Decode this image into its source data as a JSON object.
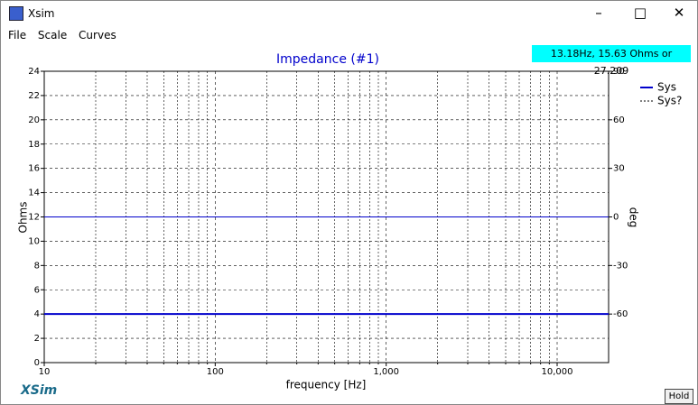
{
  "window": {
    "title": "Xsim",
    "menu": [
      "File",
      "Scale",
      "Curves"
    ],
    "status": "13.18Hz, 15.63 Ohms or 27.209",
    "brand": "XSim",
    "button": "Hold"
  },
  "chart_data": {
    "type": "line",
    "title": "Impedance (#1)",
    "xlabel": "frequency [Hz]",
    "ylabel": "Ohms",
    "y2label": "deg",
    "xscale": "log",
    "xlim": [
      10,
      20000
    ],
    "xticks": [
      10,
      100,
      {
        "value": 1000,
        "label": "1,000"
      },
      {
        "value": 10000,
        "label": "10,000"
      }
    ],
    "xminorticks": [
      20,
      30,
      40,
      50,
      60,
      70,
      80,
      90,
      200,
      300,
      400,
      500,
      600,
      700,
      800,
      900,
      2000,
      3000,
      4000,
      5000,
      6000,
      7000,
      8000,
      9000
    ],
    "ylim": [
      0,
      24
    ],
    "yticks": [
      0,
      2,
      4,
      6,
      8,
      10,
      12,
      14,
      16,
      18,
      20,
      22,
      24
    ],
    "y2lim": [
      -90,
      90
    ],
    "y2ticks": [
      -60,
      -30,
      0,
      30,
      60,
      90
    ],
    "grid": true,
    "legend": "right",
    "x": [
      10,
      20000
    ],
    "series": [
      {
        "name": "Sys",
        "color": "#0000cc",
        "values": [
          4,
          4
        ]
      },
      {
        "name": "Sys?",
        "color": "#0000cc",
        "axis": "y2",
        "values": [
          0,
          0
        ]
      }
    ]
  }
}
